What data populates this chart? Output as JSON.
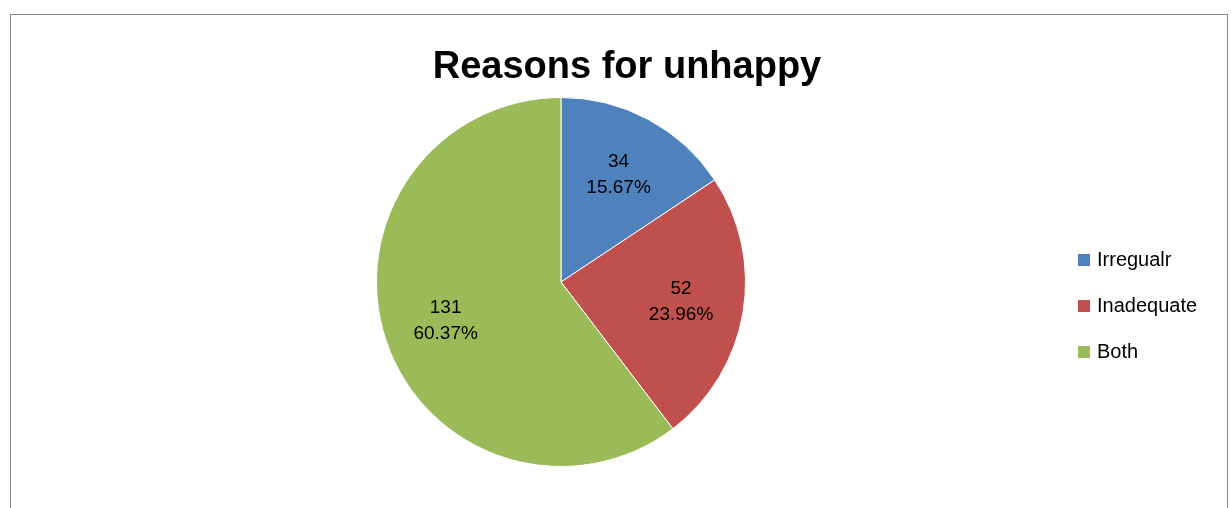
{
  "chart_data": {
    "type": "pie",
    "title": "Reasons for unhappy",
    "categories": [
      "Irregualr",
      "Inadequate",
      "Both"
    ],
    "values": [
      34,
      52,
      131
    ],
    "colors": [
      "#4f81bd",
      "#c0504d",
      "#9bbb59"
    ],
    "value_labels": [
      "34\n15.67%",
      "52\n23.96%",
      "131\n60.37%"
    ],
    "legend": "right"
  }
}
